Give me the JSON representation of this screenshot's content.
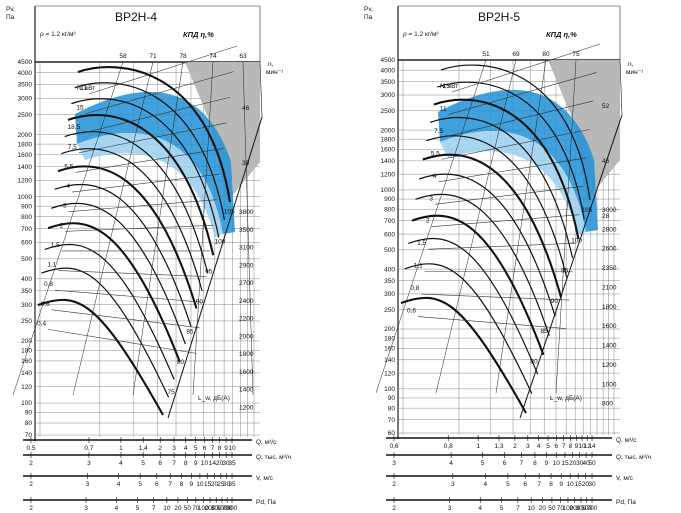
{
  "chart_data": [
    {
      "type": "line",
      "title": "ВР2Н-4",
      "density": "ρ = 1.2 кг/м³",
      "efficiency_label": "КПД η,%",
      "efficiency_ticks": [
        "58",
        "71",
        "78",
        "74",
        "63"
      ],
      "speed_label": [
        "n,",
        "мин⁻¹"
      ],
      "power_label": "N, кВт",
      "pv_label": [
        "Pv,",
        "Па"
      ],
      "pv_ticks": [
        4500,
        4000,
        3500,
        3000,
        2500,
        2000,
        1800,
        1600,
        1400,
        1200,
        1000,
        900,
        800,
        700,
        600,
        500,
        400,
        350,
        300,
        250,
        200,
        180,
        160,
        140,
        120,
        100,
        90,
        80,
        70
      ],
      "power_values": [
        "11",
        "15",
        "18.5",
        "7.5",
        "5.5",
        "4",
        "3",
        "2.2",
        "1.5",
        "1.1",
        "0.75",
        "0.55",
        "0.37"
      ],
      "power_values_display": [
        "11",
        "15",
        "18,5",
        "7,5",
        "5,5",
        "4",
        "3",
        "2",
        "1,5",
        "1,1",
        "0,8",
        "0,6",
        "0,4"
      ],
      "speed_values": [
        "3800",
        "3500",
        "3100",
        "2900",
        "2700",
        "2400",
        "2200",
        "2000",
        "1800",
        "1600",
        "1400",
        "1200"
      ],
      "speed_side_values": [
        "46",
        "30"
      ],
      "noise_label": "L_w, дБ(А)",
      "noise_values": [
        "105",
        "100",
        "95",
        "90",
        "85",
        "80",
        "75"
      ],
      "q_axis": {
        "label": "Q, м³/с",
        "ticks": [
          "0,5",
          "0,7",
          "1",
          "1,4",
          "2",
          "3",
          "4",
          "5",
          "6",
          "7",
          "8",
          "9",
          "10"
        ]
      },
      "q2_axis": {
        "label": "Q, тыс. м³/ч",
        "ticks": [
          "2",
          "3",
          "4",
          "5",
          "6",
          "7",
          "8",
          "9",
          "10",
          "14",
          "20",
          "30",
          "35"
        ]
      },
      "v_axis": {
        "label": "V, м/с",
        "ticks": [
          "2",
          "3",
          "4",
          "5",
          "6",
          "7",
          "8",
          "9",
          "10",
          "15",
          "20",
          "25",
          "30",
          "35"
        ]
      },
      "pd_axis": {
        "label": "Pd, Па",
        "ticks": [
          "2",
          "3",
          "4",
          "5",
          "7",
          "10",
          "20",
          "50",
          "70",
          "100",
          "200",
          "300",
          "500",
          "700",
          "900"
        ]
      }
    },
    {
      "type": "line",
      "title": "ВР2Н-5",
      "density": "ρ = 1.2 кг/м³",
      "efficiency_label": "КПД η,%",
      "efficiency_ticks": [
        "51",
        "69",
        "80",
        "75"
      ],
      "speed_label": [
        "n,",
        "мин⁻¹"
      ],
      "power_label": "N, кВт",
      "pv_label": [
        "Pv,",
        "Па"
      ],
      "pv_ticks": [
        4500,
        4000,
        3500,
        3000,
        2500,
        2000,
        1800,
        1600,
        1400,
        1200,
        1000,
        900,
        800,
        700,
        600,
        500,
        400,
        350,
        300,
        250,
        200,
        180,
        160,
        140,
        120,
        100,
        90,
        80,
        70,
        60
      ],
      "power_values_display": [
        "15",
        "11",
        "7,5",
        "5,5",
        "4",
        "3",
        "2",
        "1,5",
        "1,1",
        "0,8",
        "0,6"
      ],
      "speed_values": [
        "3000",
        "2800",
        "2600",
        "2350",
        "2100",
        "1800",
        "1600",
        "1400",
        "1200",
        "1000",
        "800"
      ],
      "speed_side_values": [
        "52",
        "46",
        "28"
      ],
      "noise_label": "L_w, дБ(А)",
      "noise_values": [
        "105",
        "100",
        "95",
        "90",
        "85",
        "80"
      ],
      "q_axis": {
        "label": "Q, м³/с",
        "ticks": [
          "0,6",
          "0,8",
          "1",
          "1,3",
          "2",
          "3",
          "4",
          "5",
          "6",
          "7",
          "8",
          "9",
          "10",
          "12",
          "14"
        ]
      },
      "q2_axis": {
        "label": "Q, тыс. м³/ч",
        "ticks": [
          "3",
          "4",
          "5",
          "6",
          "7",
          "8",
          "9",
          "10",
          "15",
          "20",
          "30",
          "40",
          "50"
        ]
      },
      "v_axis": {
        "label": "V, м/с",
        "ticks": [
          "2",
          "3",
          "4",
          "5",
          "6",
          "7",
          "8",
          "9",
          "10",
          "15",
          "20",
          "30"
        ]
      },
      "pd_axis": {
        "label": "Pd, Па",
        "ticks": [
          "2",
          "3",
          "4",
          "5",
          "7",
          "10",
          "20",
          "50",
          "70",
          "100",
          "200",
          "300",
          "500",
          "700"
        ]
      }
    }
  ]
}
